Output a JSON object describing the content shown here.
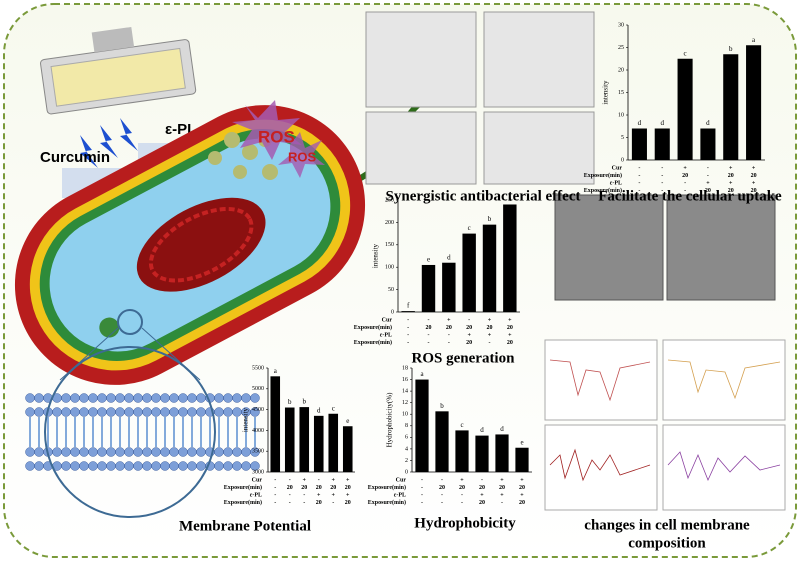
{
  "labels": {
    "curcumin": "Curcumin",
    "epl": "ε-PL",
    "ros_big": "ROS",
    "ros_small": "ROS"
  },
  "captions": {
    "synergy": "Synergistic antibacterial effect",
    "uptake": "Facilitate the cellular uptake",
    "ros": "ROS generation",
    "membrane": "Membrane Potential",
    "hydrophobicity": "Hydrophobicity",
    "composition": [
      "changes in cell membrane",
      "composition"
    ]
  },
  "chart_data": [
    {
      "type": "bar",
      "ylabel": "intensity",
      "values": [
        7,
        7,
        22.5,
        7,
        23.5,
        25.5
      ],
      "annotations": [
        "d",
        "d",
        "c",
        "d",
        "b",
        "a"
      ],
      "color": "#000000",
      "ylim": [
        0,
        30
      ],
      "yticks": [
        0,
        5,
        10,
        15,
        20,
        25,
        30
      ],
      "condition_rows": [
        {
          "label": "Cur",
          "cells": [
            "-",
            "-",
            "+",
            "-",
            "+",
            "+"
          ]
        },
        {
          "label": "Exposure(min)",
          "cells": [
            "-",
            "-",
            "20",
            "-",
            "20",
            "20"
          ]
        },
        {
          "label": "ε-PL",
          "cells": [
            "-",
            "-",
            "-",
            "+",
            "+",
            "+"
          ]
        },
        {
          "label": "Exposure(min)",
          "cells": [
            "-",
            "-",
            "-",
            "20",
            "20",
            "20"
          ]
        }
      ]
    },
    {
      "type": "bar",
      "ylabel": "intensity",
      "values": [
        2,
        105,
        110,
        175,
        195,
        240
      ],
      "annotations": [
        "f",
        "e",
        "d",
        "c",
        "b",
        "a"
      ],
      "color": "#000000",
      "ylim": [
        0,
        250
      ],
      "yticks": [
        0,
        50,
        100,
        150,
        200,
        250
      ],
      "condition_rows": [
        {
          "label": "Cur",
          "cells": [
            "-",
            "-",
            "+",
            "-",
            "+",
            "+"
          ]
        },
        {
          "label": "Exposure(min)",
          "cells": [
            "-",
            "20",
            "20",
            "20",
            "20",
            "20"
          ]
        },
        {
          "label": "ε-PL",
          "cells": [
            "-",
            "-",
            "-",
            "+",
            "+",
            "+"
          ]
        },
        {
          "label": "Exposure(min)",
          "cells": [
            "-",
            "-",
            "-",
            "20",
            "-",
            "20"
          ]
        }
      ]
    },
    {
      "type": "bar",
      "ylabel": "intensity",
      "values": [
        5300,
        4550,
        4560,
        4350,
        4400,
        4100
      ],
      "annotations": [
        "a",
        "b",
        "b",
        "d",
        "c",
        "e"
      ],
      "color": "#000000",
      "ylim": [
        3000,
        5500
      ],
      "yticks": [
        3000,
        3500,
        4000,
        4500,
        5000,
        5500
      ],
      "condition_rows": [
        {
          "label": "Cur",
          "cells": [
            "-",
            "-",
            "+",
            "-",
            "+",
            "+"
          ]
        },
        {
          "label": "Exposure(min)",
          "cells": [
            "-",
            "20",
            "20",
            "20",
            "20",
            "20"
          ]
        },
        {
          "label": "ε-PL",
          "cells": [
            "-",
            "-",
            "-",
            "+",
            "+",
            "+"
          ]
        },
        {
          "label": "Exposure(min)",
          "cells": [
            "-",
            "-",
            "-",
            "20",
            "-",
            "20"
          ]
        }
      ]
    },
    {
      "type": "bar",
      "ylabel": "Hydrophobicity(%)",
      "values": [
        16,
        10.5,
        7.2,
        6.3,
        6.5,
        4.2
      ],
      "annotations": [
        "a",
        "b",
        "c",
        "d",
        "d",
        "e"
      ],
      "color": "#000000",
      "ylim": [
        0,
        18
      ],
      "yticks": [
        0,
        2,
        4,
        6,
        8,
        10,
        12,
        14,
        16,
        18
      ],
      "condition_rows": [
        {
          "label": "Cur",
          "cells": [
            "-",
            "-",
            "+",
            "-",
            "+",
            "+"
          ]
        },
        {
          "label": "Exposure(min)",
          "cells": [
            "-",
            "20",
            "20",
            "20",
            "20",
            "20"
          ]
        },
        {
          "label": "ε-PL",
          "cells": [
            "-",
            "-",
            "-",
            "+",
            "+",
            "+"
          ]
        },
        {
          "label": "Exposure(min)",
          "cells": [
            "-",
            "-",
            "-",
            "20",
            "-",
            "20"
          ]
        }
      ]
    }
  ]
}
